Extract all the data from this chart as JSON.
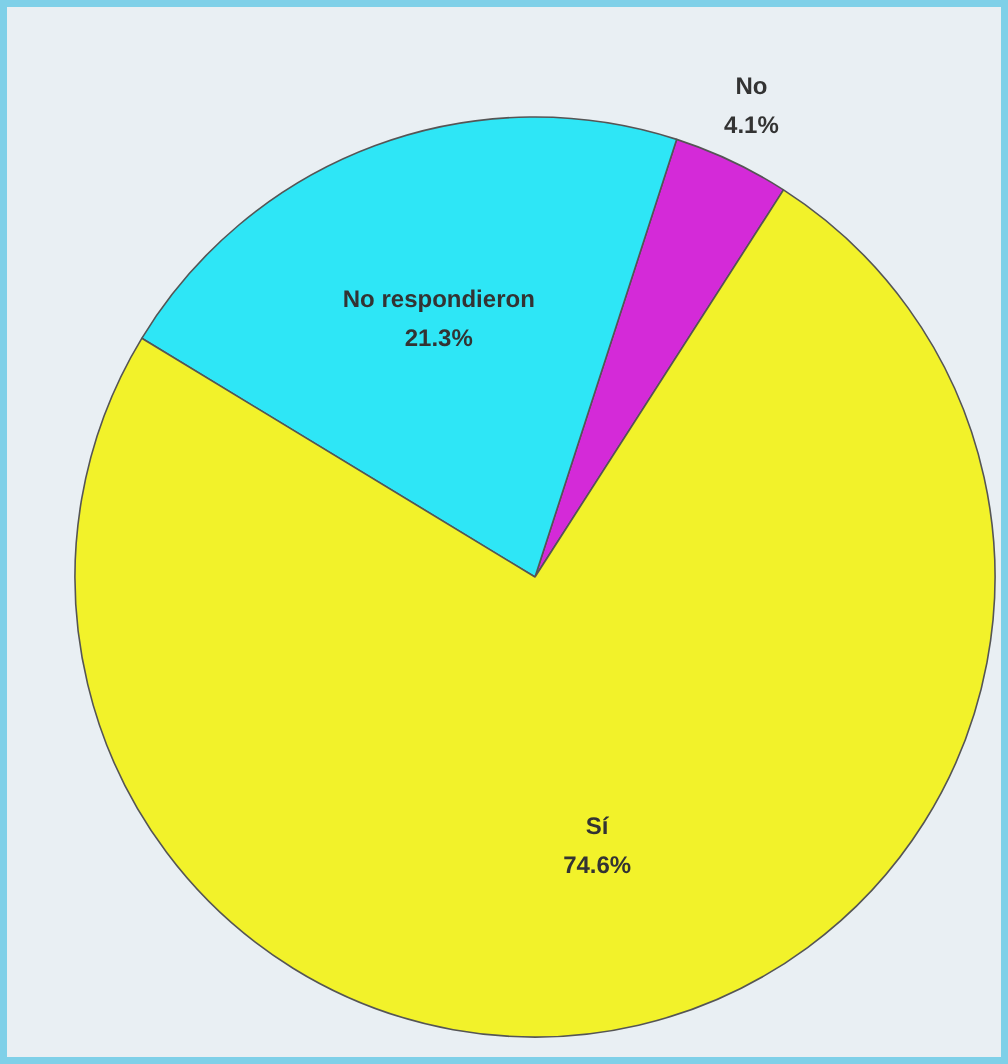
{
  "chart_data": {
    "type": "pie",
    "categories": [
      "No",
      "No respondieron",
      "Sí"
    ],
    "values": [
      4.1,
      21.3,
      74.6
    ],
    "colors": [
      "#d42ad8",
      "#2ee6f6",
      "#f2f22a"
    ],
    "value_labels": [
      "4.1%",
      "21.3%",
      "74.6%"
    ]
  }
}
